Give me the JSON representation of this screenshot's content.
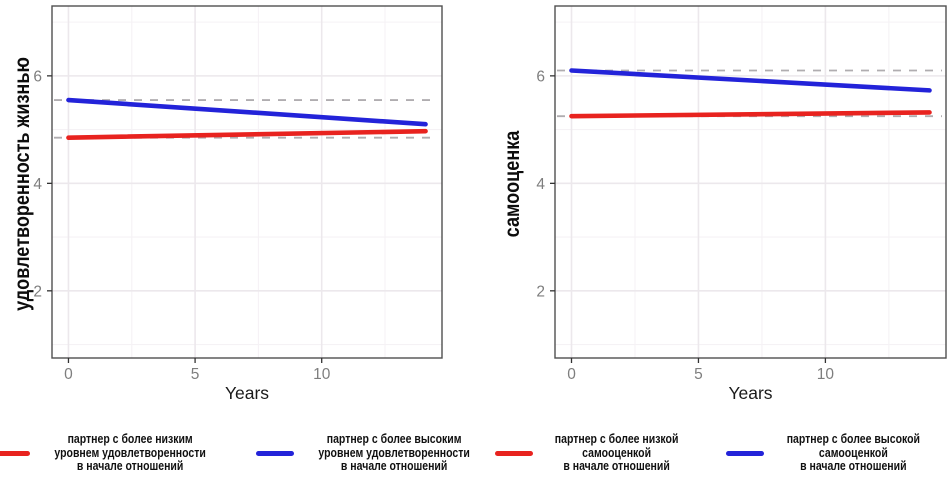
{
  "figure": {
    "background": "#ffffff",
    "panel_border_color": "#4f4f4f",
    "grid_major_color": "#ece8ec",
    "grid_minor_color": "#f5f2f5",
    "tick_label_color": "#7e7e7e",
    "axis_title_color": "#1a1a1a"
  },
  "chart_data": [
    {
      "type": "line",
      "title": "",
      "xlabel": "Years",
      "ylabel": "удовлетворенность жизнью",
      "x_ticks": [
        0,
        5,
        10
      ],
      "y_ticks": [
        2,
        4,
        6
      ],
      "x_minor": [
        2.5,
        7.5,
        12.5
      ],
      "y_minor": [
        1,
        3,
        5,
        7
      ],
      "xlim": [
        -0.65,
        14.75
      ],
      "ylim": [
        0.75,
        7.3
      ],
      "x": [
        0,
        14.1
      ],
      "grid": true,
      "legend_position": "bottom",
      "reference_line_color": "#b0adb0",
      "reference_line_style": "dashed",
      "series": [
        {
          "name": "партнер с более высоким уровнем удовлетворенности в начале отношений",
          "color": "#2323d9",
          "values": [
            5.55,
            5.1
          ],
          "dashed_baseline": 5.55
        },
        {
          "name": "партнер с более низким уровнем удовлетворенности в начале отношений",
          "color": "#e8231f",
          "values": [
            4.85,
            4.97
          ],
          "dashed_baseline": 4.85
        }
      ],
      "legend": [
        {
          "color": "#e8231f",
          "lines": [
            "партнер с более низким",
            "уровнем удовлетворенности",
            "в начале отношений"
          ]
        },
        {
          "color": "#2323d9",
          "lines": [
            "партнер с более высоким",
            "уровнем удовлетворенности",
            "в начале отношений"
          ]
        }
      ]
    },
    {
      "type": "line",
      "title": "",
      "xlabel": "Years",
      "ylabel": "самооценка",
      "x_ticks": [
        0,
        5,
        10
      ],
      "y_ticks": [
        2,
        4,
        6
      ],
      "x_minor": [
        2.5,
        7.5,
        12.5
      ],
      "y_minor": [
        1,
        3,
        5,
        7
      ],
      "xlim": [
        -0.65,
        14.75
      ],
      "ylim": [
        0.75,
        7.3
      ],
      "x": [
        0,
        14.1
      ],
      "grid": true,
      "legend_position": "bottom",
      "reference_line_color": "#b0adb0",
      "reference_line_style": "dashed",
      "series": [
        {
          "name": "партнер с более высокой самооценкой в начале отношений",
          "color": "#2323d9",
          "values": [
            6.1,
            5.73
          ],
          "dashed_baseline": 6.1
        },
        {
          "name": "партнер с более низкой самооценкой в начале отношений",
          "color": "#e8231f",
          "values": [
            5.25,
            5.32
          ],
          "dashed_baseline": 5.25
        }
      ],
      "legend": [
        {
          "color": "#e8231f",
          "lines": [
            "партнер с более низкой",
            "самооценкой",
            "в начале отношений"
          ]
        },
        {
          "color": "#2323d9",
          "lines": [
            "партнер с более высокой",
            "самооценкой",
            "в начале отношений"
          ]
        }
      ]
    }
  ]
}
